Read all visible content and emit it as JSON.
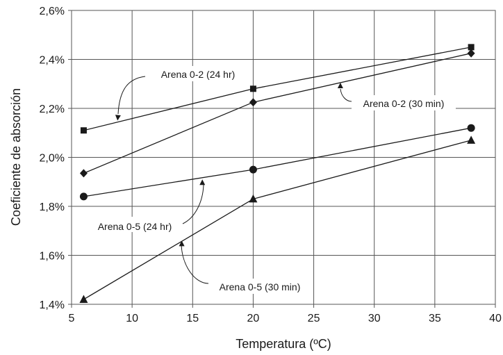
{
  "chart_data": {
    "type": "line",
    "xlabel": "Temperatura (ºC)",
    "ylabel": "Coeficiente de absorción",
    "xlim": [
      5,
      40
    ],
    "ylim": [
      1.4,
      2.6
    ],
    "x_ticks": [
      5,
      10,
      15,
      20,
      25,
      30,
      35,
      40
    ],
    "x_tick_labels": [
      "5",
      "10",
      "15",
      "20",
      "25",
      "30",
      "35",
      "40"
    ],
    "y_ticks": [
      1.4,
      1.6,
      1.8,
      2.0,
      2.2,
      2.4,
      2.6
    ],
    "y_tick_labels": [
      "1,4%",
      "1,6%",
      "1,8%",
      "2,0%",
      "2,2%",
      "2,4%",
      "2,6%"
    ],
    "grid": true,
    "marker_color": "#1a1a1a",
    "series": [
      {
        "name": "Arena 0-2 (24 hr)",
        "marker": "square",
        "x": [
          6,
          20,
          38
        ],
        "y": [
          2.11,
          2.28,
          2.45
        ]
      },
      {
        "name": "Arena 0-2 (30 min)",
        "marker": "diamond",
        "x": [
          6,
          20,
          38
        ],
        "y": [
          1.935,
          2.225,
          2.425
        ]
      },
      {
        "name": "Arena 0-5 (24 hr)",
        "marker": "circle",
        "x": [
          6,
          20,
          38
        ],
        "y": [
          1.84,
          1.95,
          2.12
        ]
      },
      {
        "name": "Arena 0-5 (30 min)",
        "marker": "triangle",
        "x": [
          6,
          20,
          38
        ],
        "y": [
          1.42,
          1.83,
          2.07
        ]
      }
    ],
    "annotations": [
      {
        "text": "Arena 0-2 (24 hr)",
        "target_x": 8.8,
        "target_y": 2.15
      },
      {
        "text": "Arena 0-2 (30 min)",
        "target_x": 27.2,
        "target_y": 2.305
      },
      {
        "text": "Arena 0-5 (24 hr)",
        "target_x": 15.8,
        "target_y": 1.91
      },
      {
        "text": "Arena 0-5 (30 min)",
        "target_x": 14.1,
        "target_y": 1.66
      }
    ]
  }
}
